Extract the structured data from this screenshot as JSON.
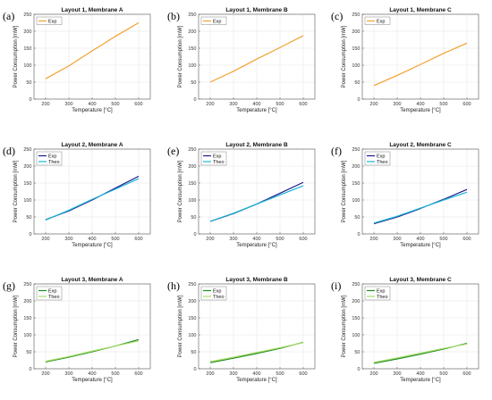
{
  "chart_data": [
    {
      "type": "line",
      "panel_label": "(a)",
      "title": "Layout 1, Membrane A",
      "xlabel": "Temperature [°C]",
      "ylabel": "Power Consumption [mW]",
      "xlim": [
        150,
        650
      ],
      "ylim": [
        0,
        250
      ],
      "xticks": [
        200,
        300,
        400,
        500,
        600
      ],
      "yticks": [
        0,
        50,
        100,
        150,
        200,
        250
      ],
      "grid": true,
      "legend": "top-left",
      "x": [
        200,
        300,
        400,
        500,
        600
      ],
      "series": [
        {
          "name": "Exp",
          "color": "#f4a030",
          "values": [
            60,
            98,
            142,
            185,
            225
          ]
        }
      ]
    },
    {
      "type": "line",
      "panel_label": "(b)",
      "title": "Layout 1, Membrane B",
      "xlabel": "Temperature [°C]",
      "ylabel": "Power Consumption [mW]",
      "xlim": [
        150,
        650
      ],
      "ylim": [
        0,
        250
      ],
      "xticks": [
        200,
        300,
        400,
        500,
        600
      ],
      "yticks": [
        0,
        50,
        100,
        150,
        200,
        250
      ],
      "grid": true,
      "legend": "top-left",
      "x": [
        200,
        300,
        400,
        500,
        600
      ],
      "series": [
        {
          "name": "Exp",
          "color": "#f4a030",
          "values": [
            50,
            82,
            118,
            152,
            187
          ]
        }
      ]
    },
    {
      "type": "line",
      "panel_label": "(c)",
      "title": "Layout 1, Membrane C",
      "xlabel": "Temperature [°C]",
      "ylabel": "Power Consumption [mW]",
      "xlim": [
        150,
        650
      ],
      "ylim": [
        0,
        250
      ],
      "xticks": [
        200,
        300,
        400,
        500,
        600
      ],
      "yticks": [
        0,
        50,
        100,
        150,
        200,
        250
      ],
      "grid": true,
      "legend": "top-left",
      "x": [
        200,
        300,
        400,
        500,
        600
      ],
      "series": [
        {
          "name": "Exp",
          "color": "#f4a030",
          "values": [
            40,
            70,
            102,
            135,
            165
          ]
        }
      ]
    },
    {
      "type": "line",
      "panel_label": "(d)",
      "title": "Layout 2, Membrane A",
      "xlabel": "Temperature [°C]",
      "ylabel": "Power Consumption [mW]",
      "xlim": [
        150,
        650
      ],
      "ylim": [
        0,
        250
      ],
      "xticks": [
        200,
        300,
        400,
        500,
        600
      ],
      "yticks": [
        0,
        50,
        100,
        150,
        200,
        250
      ],
      "grid": true,
      "legend": "top-left",
      "x": [
        200,
        300,
        400,
        500,
        600
      ],
      "series": [
        {
          "name": "Exp",
          "color": "#1a1a8c",
          "values": [
            42,
            68,
            100,
            135,
            170
          ]
        },
        {
          "name": "Theo",
          "color": "#19b5d6",
          "values": [
            41,
            70,
            102,
            132,
            163
          ]
        }
      ]
    },
    {
      "type": "line",
      "panel_label": "(e)",
      "title": "Layout 2, Membrane B",
      "xlabel": "Temperature [°C]",
      "ylabel": "Power Consumption [mW]",
      "xlim": [
        150,
        650
      ],
      "ylim": [
        0,
        250
      ],
      "xticks": [
        200,
        300,
        400,
        500,
        600
      ],
      "yticks": [
        0,
        50,
        100,
        150,
        200,
        250
      ],
      "grid": true,
      "legend": "top-left",
      "x": [
        200,
        300,
        400,
        500,
        600
      ],
      "series": [
        {
          "name": "Exp",
          "color": "#1a1a8c",
          "values": [
            37,
            60,
            88,
            120,
            152
          ]
        },
        {
          "name": "Theo",
          "color": "#19b5d6",
          "values": [
            37,
            61,
            88,
            115,
            142
          ]
        }
      ]
    },
    {
      "type": "line",
      "panel_label": "(f)",
      "title": "Layout 2, Membrane C",
      "xlabel": "Temperature [°C]",
      "ylabel": "Power Consumption [mW]",
      "xlim": [
        150,
        650
      ],
      "ylim": [
        0,
        250
      ],
      "xticks": [
        200,
        300,
        400,
        500,
        600
      ],
      "yticks": [
        0,
        50,
        100,
        150,
        200,
        250
      ],
      "grid": true,
      "legend": "top-left",
      "x": [
        200,
        300,
        400,
        500,
        600
      ],
      "series": [
        {
          "name": "Exp",
          "color": "#1a1a8c",
          "values": [
            30,
            50,
            75,
            102,
            131
          ]
        },
        {
          "name": "Theo",
          "color": "#19b5d6",
          "values": [
            32,
            52,
            76,
            100,
            123
          ]
        }
      ]
    },
    {
      "type": "line",
      "panel_label": "(g)",
      "title": "Layout 3, Membrane A",
      "xlabel": "Temperature [°C]",
      "ylabel": "Power Consumption [mW]",
      "xlim": [
        150,
        650
      ],
      "ylim": [
        0,
        250
      ],
      "xticks": [
        200,
        300,
        400,
        500,
        600
      ],
      "yticks": [
        0,
        50,
        100,
        150,
        200,
        250
      ],
      "grid": true,
      "legend": "top-left",
      "x": [
        200,
        300,
        400,
        500,
        600
      ],
      "series": [
        {
          "name": "Exp",
          "color": "#1e8c1e",
          "values": [
            20,
            34,
            50,
            67,
            86
          ]
        },
        {
          "name": "Theo",
          "color": "#a8dc6a",
          "values": [
            22,
            36,
            52,
            67,
            82
          ]
        }
      ]
    },
    {
      "type": "line",
      "panel_label": "(h)",
      "title": "Layout 3, Membrane B",
      "xlabel": "Temperature [°C]",
      "ylabel": "Power Consumption [mW]",
      "xlim": [
        150,
        650
      ],
      "ylim": [
        0,
        250
      ],
      "xticks": [
        200,
        300,
        400,
        500,
        600
      ],
      "yticks": [
        0,
        50,
        100,
        150,
        200,
        250
      ],
      "grid": true,
      "legend": "top-left",
      "x": [
        200,
        300,
        400,
        500,
        600
      ],
      "series": [
        {
          "name": "Exp",
          "color": "#1e8c1e",
          "values": [
            18,
            31,
            45,
            60,
            78
          ]
        },
        {
          "name": "Theo",
          "color": "#a8dc6a",
          "values": [
            21,
            34,
            48,
            62,
            77
          ]
        }
      ]
    },
    {
      "type": "line",
      "panel_label": "(i)",
      "title": "Layout 3, Membrane C",
      "xlabel": "Temperature [°C]",
      "ylabel": "Power Consumption [mW]",
      "xlim": [
        150,
        650
      ],
      "ylim": [
        0,
        250
      ],
      "xticks": [
        200,
        300,
        400,
        500,
        600
      ],
      "yticks": [
        0,
        50,
        100,
        150,
        200,
        250
      ],
      "grid": true,
      "legend": "top-left",
      "x": [
        200,
        300,
        400,
        500,
        600
      ],
      "series": [
        {
          "name": "Exp",
          "color": "#1e8c1e",
          "values": [
            16,
            29,
            43,
            58,
            75
          ]
        },
        {
          "name": "Theo",
          "color": "#a8dc6a",
          "values": [
            19,
            32,
            46,
            60,
            73
          ]
        }
      ]
    }
  ]
}
